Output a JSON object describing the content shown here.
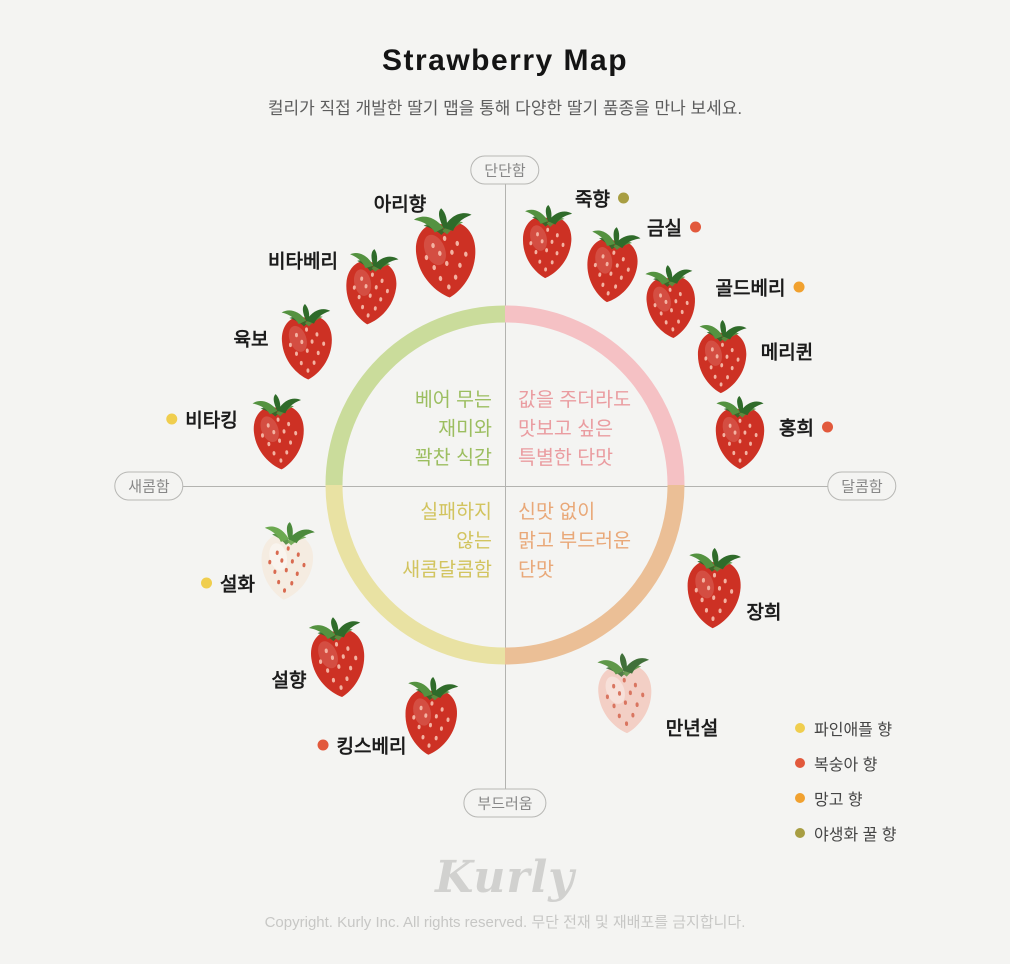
{
  "title": "Strawberry Map",
  "subtitle": "컬리가 직접 개발한 딸기 맵을 통해 다양한 딸기 품종을 만나 보세요.",
  "axes": {
    "top": "단단함",
    "bottom": "부드러움",
    "left": "새콤함",
    "right": "달콤함"
  },
  "quadrant_notes": {
    "top_left": [
      "베어 무는",
      "재미와",
      "꽉찬 식감"
    ],
    "top_right": [
      "값을 주더라도",
      "맛보고 싶은",
      "특별한 단맛"
    ],
    "bottom_left": [
      "실패하지",
      "않는",
      "새콤달콤함"
    ],
    "bottom_right": [
      "신맛 없이",
      "맑고 부드러운",
      "단맛"
    ]
  },
  "colors": {
    "ring_top_left": "#cadc9b",
    "ring_top_right": "#f5c1c4",
    "ring_bottom_left": "#e9e2a3",
    "ring_bottom_right": "#ebbf96",
    "note_top_left": "#9cbe60",
    "note_top_right": "#ea9ca0",
    "note_bottom_left": "#d2c45f",
    "note_bottom_right": "#e9a878"
  },
  "legend": [
    {
      "key": "pineapple",
      "label": "파인애플 향",
      "color": "#f0ce4e"
    },
    {
      "key": "peach",
      "label": "복숭아 향",
      "color": "#e2593c"
    },
    {
      "key": "mango",
      "label": "망고 향",
      "color": "#f1a12f"
    },
    {
      "key": "wildflower-honey",
      "label": "야생화 꿀 향",
      "color": "#a89e42"
    }
  ],
  "varieties": [
    {
      "name": "아리향",
      "scent": null,
      "berry": "red"
    },
    {
      "name": "죽향",
      "scent": "wildflower-honey",
      "berry": "red"
    },
    {
      "name": "금실",
      "scent": "peach",
      "berry": "red"
    },
    {
      "name": "골드베리",
      "scent": "mango",
      "berry": "red"
    },
    {
      "name": "메리퀸",
      "scent": null,
      "berry": "red"
    },
    {
      "name": "홍희",
      "scent": "peach",
      "berry": "red"
    },
    {
      "name": "장희",
      "scent": null,
      "berry": "red"
    },
    {
      "name": "만년설",
      "scent": null,
      "berry": "pink"
    },
    {
      "name": "킹스베리",
      "scent": "peach",
      "berry": "red"
    },
    {
      "name": "설향",
      "scent": null,
      "berry": "red"
    },
    {
      "name": "설화",
      "scent": "pineapple",
      "berry": "white"
    },
    {
      "name": "비타킹",
      "scent": "pineapple",
      "berry": "red"
    },
    {
      "name": "육보",
      "scent": null,
      "berry": "red"
    },
    {
      "name": "비타베리",
      "scent": null,
      "berry": "red"
    }
  ],
  "footer": {
    "logo": "Kurly",
    "copyright": "Copyright. Kurly Inc. All rights reserved. 무단 전재 및 재배포를 금지합니다."
  },
  "chart_data": {
    "type": "scatter",
    "title": "Strawberry Map",
    "x_axis": {
      "negative_label": "새콤함",
      "positive_label": "달콤함",
      "range": [
        -1,
        1
      ]
    },
    "y_axis": {
      "negative_label": "부드러움",
      "positive_label": "단단함",
      "range": [
        -1,
        1
      ]
    },
    "legend_position": "bottom-right",
    "points": [
      {
        "name": "아리향",
        "x": -0.19,
        "y": 0.79,
        "scent": null
      },
      {
        "name": "죽향",
        "x": 0.13,
        "y": 0.82,
        "scent": "야생화 꿀 향"
      },
      {
        "name": "금실",
        "x": 0.33,
        "y": 0.74,
        "scent": "복숭아 향"
      },
      {
        "name": "골드베리",
        "x": 0.51,
        "y": 0.61,
        "scent": "망고 향"
      },
      {
        "name": "메리퀸",
        "x": 0.67,
        "y": 0.43,
        "scent": null
      },
      {
        "name": "홍희",
        "x": 0.73,
        "y": 0.17,
        "scent": "복숭아 향"
      },
      {
        "name": "장희",
        "x": 0.65,
        "y": -0.34,
        "scent": null
      },
      {
        "name": "만년설",
        "x": 0.37,
        "y": -0.69,
        "scent": null
      },
      {
        "name": "킹스베리",
        "x": -0.23,
        "y": -0.77,
        "scent": "복숭아 향"
      },
      {
        "name": "설향",
        "x": -0.52,
        "y": -0.57,
        "scent": null
      },
      {
        "name": "설화",
        "x": -0.68,
        "y": -0.25,
        "scent": "파인애플 향"
      },
      {
        "name": "비타킹",
        "x": -0.71,
        "y": 0.18,
        "scent": "파인애플 향"
      },
      {
        "name": "육보",
        "x": -0.62,
        "y": 0.47,
        "scent": null
      },
      {
        "name": "비타베리",
        "x": -0.42,
        "y": 0.66,
        "scent": null
      }
    ]
  }
}
